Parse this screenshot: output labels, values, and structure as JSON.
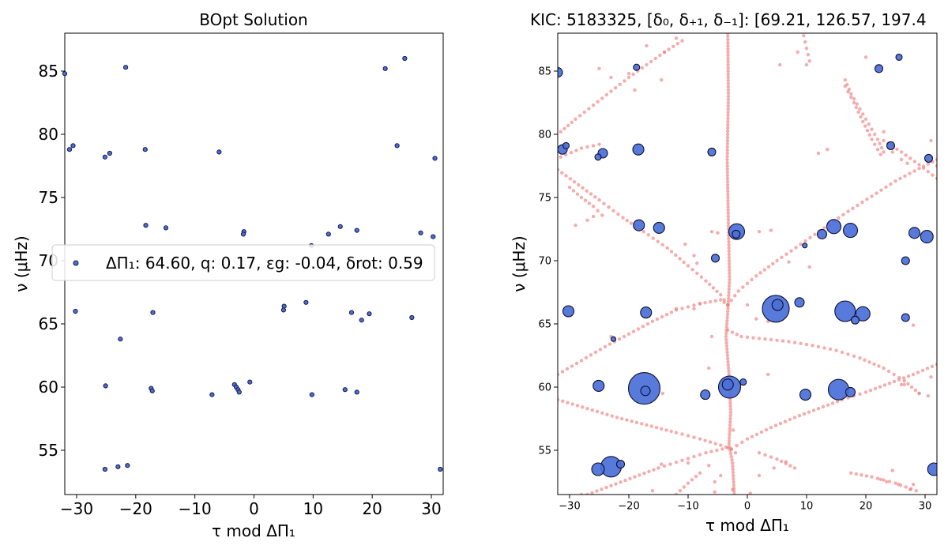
{
  "chart_data": [
    {
      "type": "scatter",
      "title": "BOpt Solution",
      "xlabel": "τ mod ΔΠ₁",
      "ylabel": "ν (μHz)",
      "xlim": [
        -32,
        32
      ],
      "ylim": [
        51.5,
        88
      ],
      "xticks": [
        -30,
        -20,
        -10,
        0,
        10,
        20,
        30
      ],
      "yticks": [
        55,
        60,
        65,
        70,
        75,
        80,
        85
      ],
      "legend": {
        "placement": "center",
        "label": "ΔΠ₁: 64.60, q: 0.17, εg: -0.04, δrot: 0.59"
      },
      "marker_color": "#4a6fd8",
      "points": [
        [
          -32,
          84.8
        ],
        [
          -21.7,
          85.3
        ],
        [
          22.2,
          85.2
        ],
        [
          25.5,
          86.0
        ],
        [
          -31.2,
          78.8
        ],
        [
          -30.6,
          79.1
        ],
        [
          -25.2,
          78.2
        ],
        [
          -24.4,
          78.5
        ],
        [
          -18.4,
          78.8
        ],
        [
          -5.9,
          78.6
        ],
        [
          24.2,
          79.1
        ],
        [
          30.6,
          78.1
        ],
        [
          -18.3,
          72.8
        ],
        [
          -14.9,
          72.6
        ],
        [
          -1.7,
          72.3
        ],
        [
          -1.8,
          72.1
        ],
        [
          12.6,
          72.1
        ],
        [
          14.6,
          72.7
        ],
        [
          17.4,
          72.4
        ],
        [
          28.2,
          72.2
        ],
        [
          30.3,
          71.9
        ],
        [
          9.7,
          71.2
        ],
        [
          -30.2,
          66.0
        ],
        [
          -17.1,
          65.9
        ],
        [
          5.1,
          66.4
        ],
        [
          5.0,
          66.1
        ],
        [
          8.8,
          66.7
        ],
        [
          16.5,
          65.9
        ],
        [
          18.2,
          65.3
        ],
        [
          19.5,
          65.8
        ],
        [
          26.7,
          65.5
        ],
        [
          -22.6,
          63.8
        ],
        [
          -25.1,
          60.1
        ],
        [
          -17.4,
          59.9
        ],
        [
          -17.2,
          59.7
        ],
        [
          -7.1,
          59.4
        ],
        [
          -3.3,
          60.2
        ],
        [
          -3.0,
          60.0
        ],
        [
          -2.7,
          59.8
        ],
        [
          -2.5,
          59.6
        ],
        [
          -0.7,
          60.4
        ],
        [
          9.8,
          59.4
        ],
        [
          15.4,
          59.8
        ],
        [
          17.4,
          59.6
        ],
        [
          -25.2,
          53.5
        ],
        [
          -23.0,
          53.7
        ],
        [
          -21.4,
          53.8
        ],
        [
          31.5,
          53.5
        ]
      ]
    },
    {
      "type": "scatter",
      "title": "KIC: 5183325, [δ₀, δ₊₁, δ₋₁]: [69.21, 126.57, 197.4",
      "xlabel": "τ mod ΔΠ₁",
      "ylabel": "ν (μHz)",
      "xlim": [
        -32,
        32
      ],
      "ylim": [
        51.5,
        88
      ],
      "xticks": [
        -30,
        -20,
        -10,
        0,
        10,
        20,
        30
      ],
      "yticks": [
        55,
        60,
        65,
        70,
        75,
        80,
        85
      ],
      "observed_color": "#4a6fd8",
      "model_color": "#f08080",
      "observed_points": [
        [
          -32,
          84.9,
          6
        ],
        [
          -18.7,
          85.3,
          4
        ],
        [
          22.2,
          85.2,
          5
        ],
        [
          25.6,
          86.1,
          4
        ],
        [
          -31.2,
          78.8,
          6
        ],
        [
          -30.6,
          79.1,
          4
        ],
        [
          -25.2,
          78.2,
          4
        ],
        [
          -24.4,
          78.5,
          6
        ],
        [
          -18.4,
          78.8,
          7
        ],
        [
          -6.0,
          78.6,
          5
        ],
        [
          24.2,
          79.1,
          5
        ],
        [
          30.6,
          78.1,
          5
        ],
        [
          -18.3,
          72.8,
          7
        ],
        [
          -14.9,
          72.6,
          7
        ],
        [
          -1.8,
          72.3,
          10
        ],
        [
          -1.9,
          72.1,
          5
        ],
        [
          12.6,
          72.1,
          6
        ],
        [
          14.6,
          72.7,
          9
        ],
        [
          17.4,
          72.4,
          9
        ],
        [
          28.2,
          72.2,
          7
        ],
        [
          30.3,
          71.9,
          8
        ],
        [
          9.7,
          71.2,
          3
        ],
        [
          -5.4,
          70.2,
          5
        ],
        [
          26.7,
          70.0,
          5
        ],
        [
          -30.2,
          66.0,
          7
        ],
        [
          -17.1,
          65.9,
          7
        ],
        [
          4.8,
          66.2,
          17
        ],
        [
          5.1,
          66.5,
          7
        ],
        [
          8.8,
          66.7,
          6
        ],
        [
          16.5,
          66.0,
          13
        ],
        [
          18.2,
          65.3,
          5
        ],
        [
          19.5,
          65.8,
          9
        ],
        [
          26.7,
          65.5,
          5
        ],
        [
          -22.6,
          63.8,
          3
        ],
        [
          -25.1,
          60.1,
          7
        ],
        [
          -17.4,
          59.9,
          20
        ],
        [
          -17.2,
          59.7,
          6
        ],
        [
          -7.1,
          59.4,
          6
        ],
        [
          -3.0,
          60.0,
          14
        ],
        [
          -3.3,
          60.2,
          7
        ],
        [
          -0.7,
          60.4,
          4
        ],
        [
          9.8,
          59.4,
          7
        ],
        [
          15.4,
          59.8,
          13
        ],
        [
          17.4,
          59.6,
          6
        ],
        [
          -25.2,
          53.5,
          8
        ],
        [
          -23.0,
          53.7,
          13
        ],
        [
          -21.4,
          53.9,
          5
        ],
        [
          31.5,
          53.5,
          8
        ]
      ],
      "model_tracks": {
        "central": [
          [
            -3.3,
            88
          ],
          [
            -3.2,
            83
          ],
          [
            -3.4,
            78
          ],
          [
            -3.2,
            73
          ],
          [
            -3.0,
            68.5
          ],
          [
            -3.3,
            66
          ],
          [
            -3.6,
            64
          ],
          [
            -3.1,
            61
          ],
          [
            -2.8,
            58
          ],
          [
            -3.1,
            55.5
          ],
          [
            -2.5,
            54
          ],
          [
            -2.2,
            51.5
          ]
        ],
        "arcs": [
          [
            [
              -32,
              77.2
            ],
            [
              -28.5,
              76.0
            ],
            [
              -25,
              74.8
            ],
            [
              -21,
              73.4
            ],
            [
              -17.5,
              72.3
            ],
            [
              -13.5,
              71.0
            ],
            [
              -10,
              69.6
            ],
            [
              -7,
              68.4
            ],
            [
              -4.5,
              67.3
            ],
            [
              -3.3,
              66.5
            ]
          ],
          [
            [
              -3.3,
              66.5
            ],
            [
              -1.5,
              67.6
            ],
            [
              1.5,
              68.8
            ],
            [
              5,
              70.0
            ],
            [
              9,
              71.3
            ],
            [
              13,
              72.6
            ],
            [
              17,
              73.9
            ],
            [
              21,
              75.1
            ],
            [
              25,
              76.3
            ],
            [
              29,
              77.3
            ],
            [
              32,
              78.0
            ]
          ],
          [
            [
              -32,
              61.0
            ],
            [
              -28,
              62.1
            ],
            [
              -24,
              63.2
            ],
            [
              -20,
              64.2
            ],
            [
              -16,
              65.2
            ],
            [
              -12,
              66.1
            ],
            [
              -8,
              66.6
            ],
            [
              -4.5,
              66.9
            ],
            [
              -3.3,
              66.5
            ]
          ],
          [
            [
              -3.3,
              64.5
            ],
            [
              -1,
              64.0
            ],
            [
              3,
              63.8
            ],
            [
              7,
              63.6
            ],
            [
              11,
              63.3
            ],
            [
              15,
              62.9
            ],
            [
              19,
              62.3
            ],
            [
              23,
              61.5
            ],
            [
              26.5,
              60.5
            ],
            [
              29,
              59.5
            ]
          ],
          [
            [
              -32,
              59.0
            ],
            [
              -27,
              58.3
            ],
            [
              -22,
              57.6
            ],
            [
              -17,
              57.0
            ],
            [
              -12,
              56.4
            ],
            [
              -8,
              55.9
            ],
            [
              -4.5,
              55.4
            ],
            [
              -2.7,
              55.1
            ]
          ],
          [
            [
              -2.7,
              55.1
            ],
            [
              0,
              55.9
            ],
            [
              4,
              56.8
            ],
            [
              8,
              57.6
            ],
            [
              12,
              58.3
            ],
            [
              16,
              59.0
            ],
            [
              20,
              59.6
            ],
            [
              24,
              60.3
            ],
            [
              28,
              61.0
            ],
            [
              32,
              61.8
            ]
          ],
          [
            [
              -27,
              51.5
            ],
            [
              -23,
              52.2
            ],
            [
              -19,
              52.9
            ],
            [
              -15,
              53.6
            ],
            [
              -11,
              54.2
            ],
            [
              -7,
              54.8
            ],
            [
              -3.3,
              55.2
            ]
          ],
          [
            [
              17.5,
              53.2
            ],
            [
              21,
              52.9
            ],
            [
              25,
              52.4
            ],
            [
              28.5,
              51.8
            ]
          ],
          [
            [
              -31.5,
              80.2
            ],
            [
              -29,
              81.2
            ],
            [
              -26,
              82.3
            ],
            [
              -23,
              83.4
            ],
            [
              -20,
              84.5
            ],
            [
              -17,
              85.5
            ],
            [
              -14,
              86.5
            ],
            [
              -11,
              87.4
            ]
          ],
          [
            [
              16.5,
              83.8
            ],
            [
              18,
              82.5
            ],
            [
              19.5,
              81.0
            ],
            [
              21,
              79.6
            ],
            [
              22.5,
              78.4
            ]
          ],
          [
            [
              9.5,
              87.8
            ],
            [
              10,
              86.8
            ],
            [
              10.5,
              85.8
            ]
          ],
          [
            [
              -30,
              75.8
            ],
            [
              -28,
              75.0
            ],
            [
              -26,
              74.3
            ],
            [
              -24.5,
              73.6
            ]
          ],
          [
            [
              16.5,
              84.3
            ],
            [
              17.5,
              83.2
            ],
            [
              19,
              82.0
            ],
            [
              20.5,
              80.8
            ],
            [
              22,
              79.6
            ],
            [
              23,
              78.6
            ]
          ],
          [
            [
              23,
              79.5
            ],
            [
              26,
              78.6
            ],
            [
              29,
              77.6
            ],
            [
              32,
              76.5
            ]
          ],
          [
            [
              -31.5,
              78.2
            ],
            [
              -28,
              78.9
            ],
            [
              -25,
              79.2
            ]
          ],
          [
            [
              -12,
              51.5
            ],
            [
              -10,
              52.4
            ],
            [
              -8,
              53.2
            ]
          ],
          [
            [
              2,
              54.8
            ],
            [
              5,
              54.3
            ],
            [
              8,
              53.6
            ]
          ]
        ],
        "scatter": [
          [
            -28,
            51.5
          ],
          [
            -25,
            85.2
          ],
          [
            -14.5,
            84.3
          ],
          [
            -10.5,
            71.3
          ],
          [
            -8.5,
            69.8
          ],
          [
            -6,
            72.3
          ],
          [
            -5,
            72.2
          ],
          [
            -6.5,
            61.5
          ],
          [
            -8,
            66.6
          ],
          [
            -9,
            66.2
          ],
          [
            -12,
            66.2
          ],
          [
            -6,
            64.0
          ],
          [
            -9,
            70.4
          ],
          [
            -14.3,
            59.5
          ],
          [
            -10,
            54.0
          ],
          [
            -14.5,
            53.9
          ],
          [
            -16,
            51.8
          ],
          [
            -9,
            50.9
          ],
          [
            -5.5,
            51.7
          ],
          [
            -5.5,
            52.5
          ],
          [
            -2.5,
            51.9
          ],
          [
            -2.4,
            56.6
          ],
          [
            -2,
            54.8
          ],
          [
            6.5,
            54.1
          ],
          [
            3.5,
            61.0
          ],
          [
            4.5,
            53.6
          ],
          [
            2,
            53.0
          ],
          [
            0.5,
            51.6
          ],
          [
            -4.5,
            53.0
          ],
          [
            -6.5,
            53.8
          ],
          [
            0,
            66.5
          ],
          [
            1.5,
            65.4
          ],
          [
            3.5,
            65.2
          ],
          [
            2,
            72.3
          ],
          [
            4,
            72.4
          ],
          [
            7,
            69.9
          ],
          [
            10.5,
            69.5
          ],
          [
            5.5,
            85.5
          ],
          [
            10,
            85.5
          ],
          [
            20,
            86.1
          ],
          [
            23,
            80.2
          ],
          [
            24.5,
            78.6
          ],
          [
            26,
            78.0
          ],
          [
            27,
            77.7
          ],
          [
            28,
            64.9
          ],
          [
            29,
            59.5
          ],
          [
            30.5,
            59.3
          ],
          [
            26.5,
            60.2
          ],
          [
            26,
            60.2
          ],
          [
            24.5,
            53.4
          ],
          [
            22.5,
            52.7
          ],
          [
            23.5,
            52.5
          ],
          [
            25.5,
            52.3
          ],
          [
            27.5,
            51.9
          ],
          [
            28,
            52.3
          ],
          [
            31,
            60.8
          ],
          [
            31,
            79.5
          ],
          [
            32,
            77.5
          ],
          [
            -23,
            64.0
          ],
          [
            -26,
            73.5
          ],
          [
            -29,
            72.8
          ],
          [
            -27,
            73.2
          ],
          [
            -20,
            84.8
          ],
          [
            -23,
            84.5
          ],
          [
            -19,
            83.5
          ],
          [
            -14,
            86.5
          ],
          [
            -17,
            87.0
          ],
          [
            -12,
            87.6
          ],
          [
            8.5,
            86.5
          ],
          [
            12,
            78.5
          ],
          [
            13.5,
            78.8
          ],
          [
            28.5,
            72.3
          ]
        ]
      }
    }
  ]
}
